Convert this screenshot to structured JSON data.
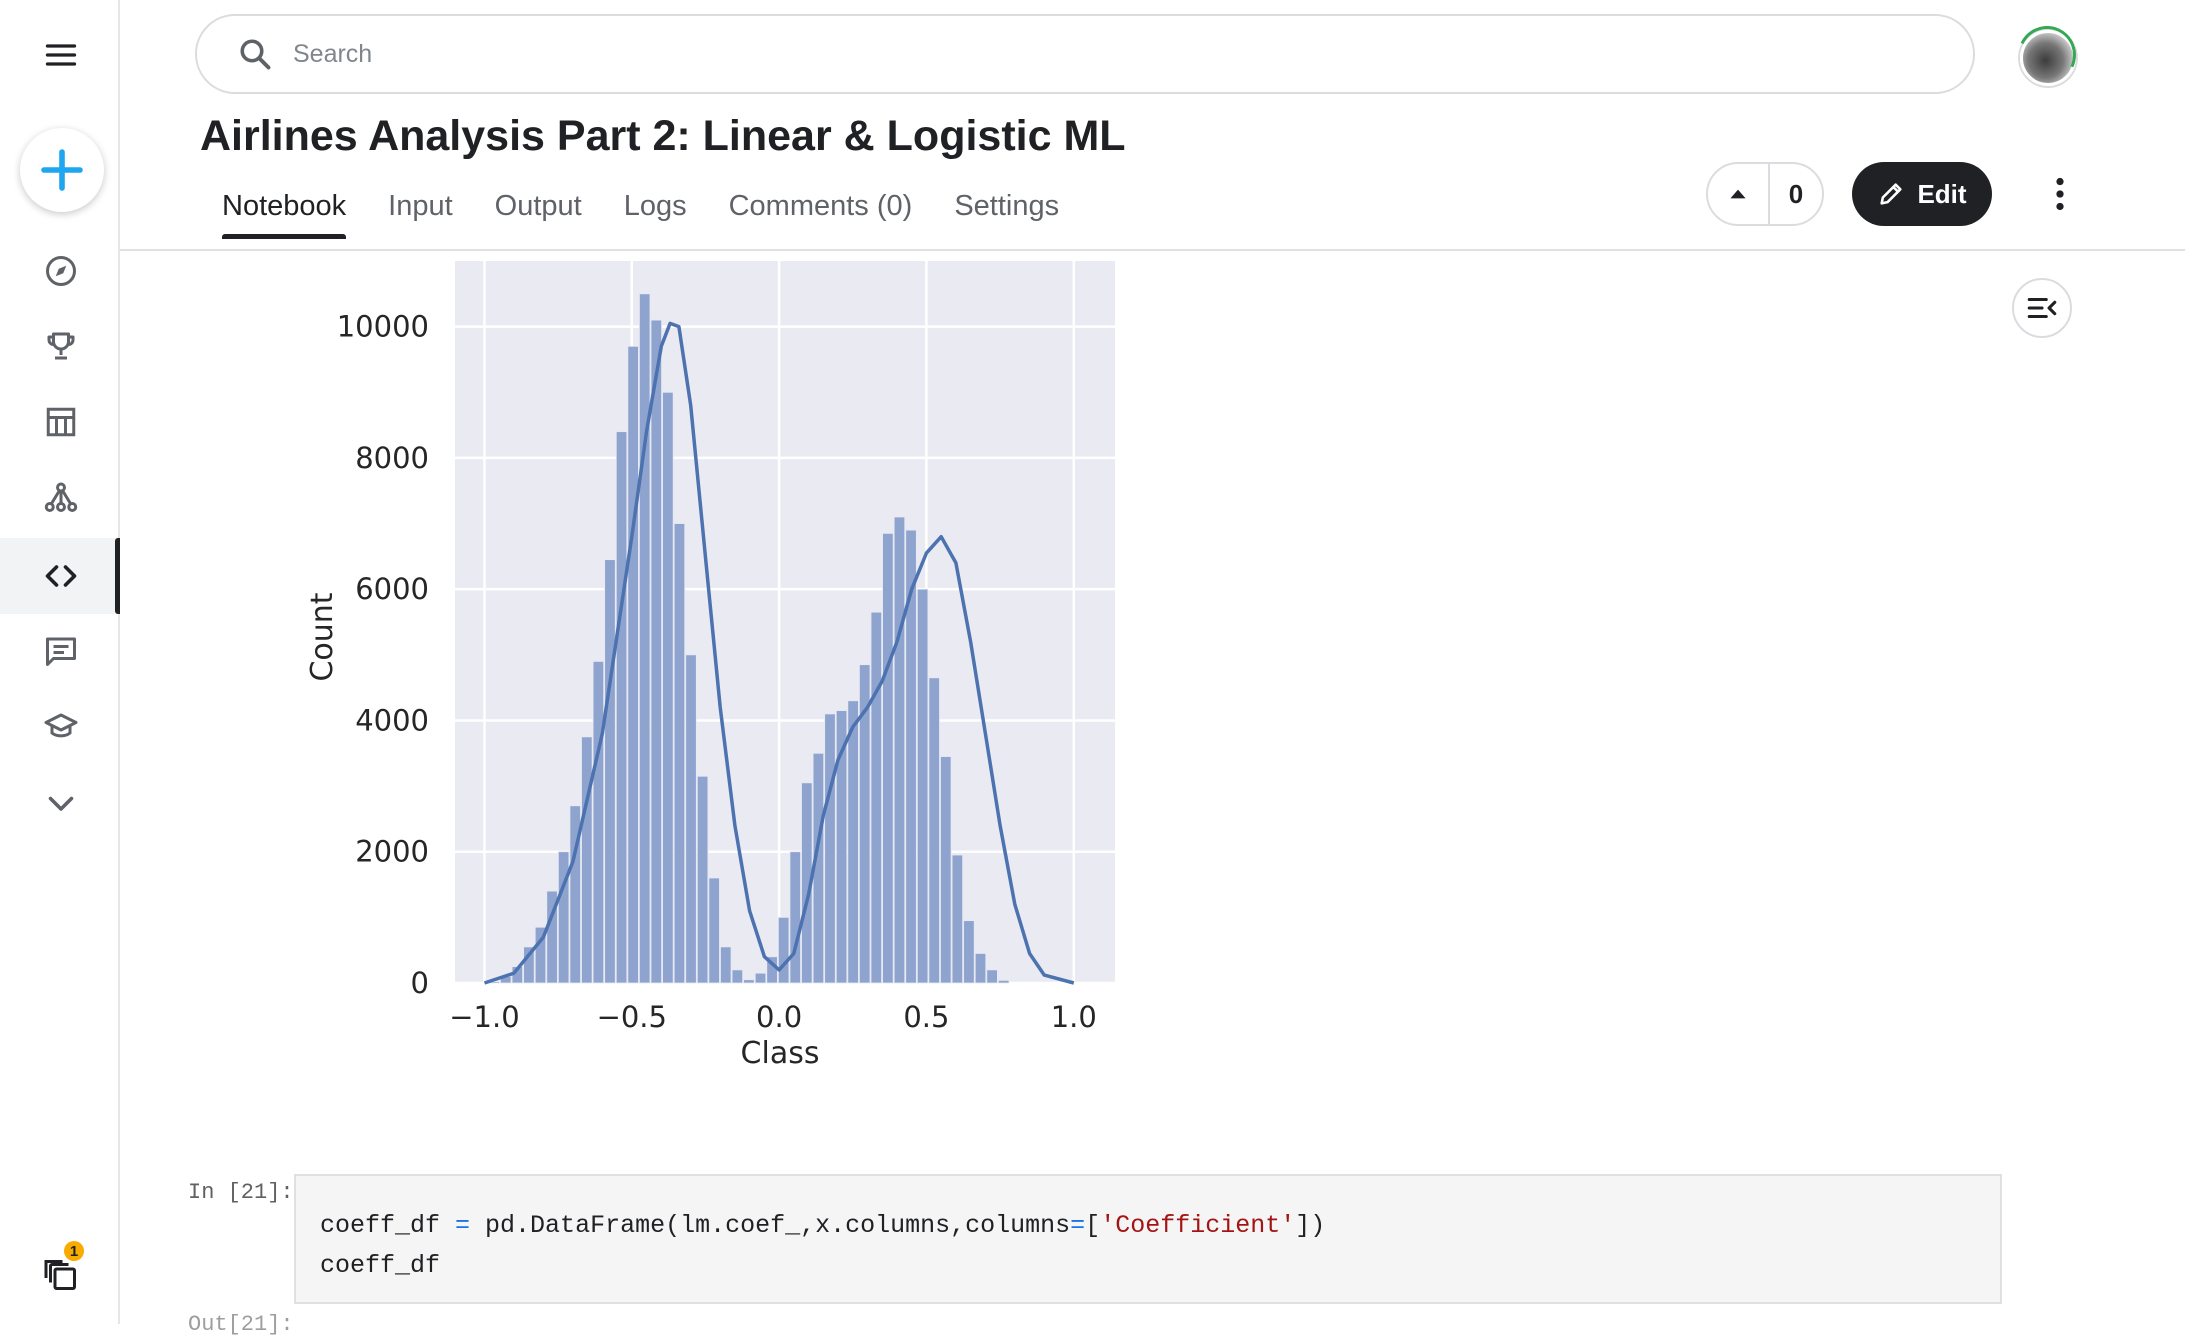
{
  "header": {
    "search_placeholder": "Search",
    "notebook_title": "Airlines Analysis Part 2: Linear & Logistic ML",
    "vote_count": "0",
    "edit_label": "Edit"
  },
  "tabs": [
    {
      "label": "Notebook",
      "active": true
    },
    {
      "label": "Input",
      "active": false
    },
    {
      "label": "Output",
      "active": false
    },
    {
      "label": "Logs",
      "active": false
    },
    {
      "label": "Comments (0)",
      "active": false
    },
    {
      "label": "Settings",
      "active": false
    }
  ],
  "sidebar": {
    "items": [
      {
        "icon": "menu-icon"
      },
      {
        "icon": "create-icon"
      },
      {
        "icon": "compass-icon"
      },
      {
        "icon": "trophy-icon"
      },
      {
        "icon": "table-icon"
      },
      {
        "icon": "models-icon"
      },
      {
        "icon": "code-icon",
        "active": true
      },
      {
        "icon": "comments-icon"
      },
      {
        "icon": "learn-icon"
      },
      {
        "icon": "chevron-down-icon"
      },
      {
        "icon": "recently-viewed-icon"
      }
    ],
    "notification_count": "1"
  },
  "chart_data": {
    "type": "histogram",
    "xlabel": "Class",
    "ylabel": "Count",
    "xlim": [
      -1.1,
      1.14
    ],
    "ylim": [
      0,
      11000
    ],
    "xticks": [
      "−1.0",
      "−0.5",
      "0.0",
      "0.5",
      "1.0"
    ],
    "xtick_values": [
      -1.0,
      -0.5,
      0.0,
      0.5,
      1.0
    ],
    "yticks": [
      "0",
      "2000",
      "4000",
      "6000",
      "8000",
      "10000"
    ],
    "ytick_values": [
      0,
      2000,
      4000,
      6000,
      8000,
      10000
    ],
    "bin_width": 0.0393,
    "bins_start": -0.985,
    "counts": [
      20,
      100,
      250,
      550,
      850,
      1400,
      2000,
      2700,
      3750,
      4900,
      6450,
      8400,
      9700,
      10500,
      10100,
      9000,
      7000,
      5000,
      3150,
      1600,
      550,
      200,
      50,
      150,
      400,
      1000,
      2000,
      3050,
      3500,
      4100,
      4150,
      4300,
      4850,
      5650,
      6850,
      7100,
      6900,
      6000,
      4650,
      3450,
      1950,
      950,
      450,
      200,
      40
    ],
    "kde_x": [
      -1.0,
      -0.9,
      -0.8,
      -0.7,
      -0.6,
      -0.5,
      -0.45,
      -0.4,
      -0.37,
      -0.34,
      -0.3,
      -0.25,
      -0.2,
      -0.15,
      -0.1,
      -0.05,
      0.0,
      0.05,
      0.1,
      0.15,
      0.2,
      0.25,
      0.3,
      0.35,
      0.4,
      0.45,
      0.5,
      0.55,
      0.6,
      0.65,
      0.7,
      0.75,
      0.8,
      0.85,
      0.9,
      1.0
    ],
    "kde_y": [
      0,
      150,
      700,
      1850,
      3800,
      6800,
      8400,
      9700,
      10050,
      10000,
      8800,
      6500,
      4200,
      2400,
      1100,
      400,
      200,
      450,
      1350,
      2550,
      3400,
      3900,
      4200,
      4600,
      5200,
      6000,
      6550,
      6800,
      6400,
      5200,
      3800,
      2400,
      1200,
      450,
      120,
      0
    ],
    "grid": true,
    "background": "#eaeaf2",
    "bar_color": "#8fa3cf",
    "line_color": "#4c72b0"
  },
  "cell": {
    "prompt": "In [21]:",
    "code_lines": [
      [
        {
          "t": "coeff_df ",
          "c": "plain"
        },
        {
          "t": "=",
          "c": "op"
        },
        {
          "t": " pd.DataFrame(lm.coef_,x.columns,columns",
          "c": "plain"
        },
        {
          "t": "=",
          "c": "op"
        },
        {
          "t": "[",
          "c": "plain"
        },
        {
          "t": "'Coefficient'",
          "c": "str"
        },
        {
          "t": "])",
          "c": "plain"
        }
      ],
      [
        {
          "t": "coeff_df",
          "c": "plain"
        }
      ]
    ],
    "next_prompt": "Out[21]:"
  }
}
